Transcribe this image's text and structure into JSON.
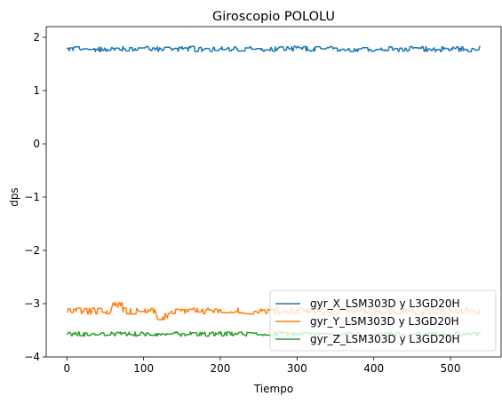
{
  "chart_data": {
    "type": "line",
    "title": "Giroscopio POLOLU",
    "xlabel": "Tiempo",
    "ylabel": "dps",
    "xlim": [
      -27,
      566
    ],
    "ylim": [
      -4,
      2.2
    ],
    "xticks": [
      0,
      100,
      200,
      300,
      400,
      500
    ],
    "yticks": [
      2,
      1,
      0,
      -1,
      -2,
      -3,
      -4
    ],
    "ytick_labels": [
      "2",
      "1",
      "0",
      "−1",
      "−2",
      "−3",
      "−4"
    ],
    "legend_position": "lower-right",
    "n_points": 540,
    "series": [
      {
        "name": "gyr_X_LSM303D y L3GD20H",
        "color": "#1f77b4",
        "baseline": 1.78,
        "noise": 0.05,
        "range": [
          1.7,
          1.87
        ]
      },
      {
        "name": "gyr_Y_LSM303D y L3GD20H",
        "color": "#ff7f0e",
        "baseline": -3.14,
        "noise": 0.06,
        "range": [
          -3.3,
          -2.98
        ],
        "features": [
          {
            "x": 65,
            "value": -3.03,
            "note": "bump"
          },
          {
            "x": 122,
            "value": -3.28,
            "note": "dip"
          }
        ]
      },
      {
        "name": "gyr_Z_LSM303D y L3GD20H",
        "color": "#2ca02c",
        "baseline": -3.57,
        "noise": 0.04,
        "range": [
          -3.72,
          -3.48
        ]
      }
    ]
  }
}
